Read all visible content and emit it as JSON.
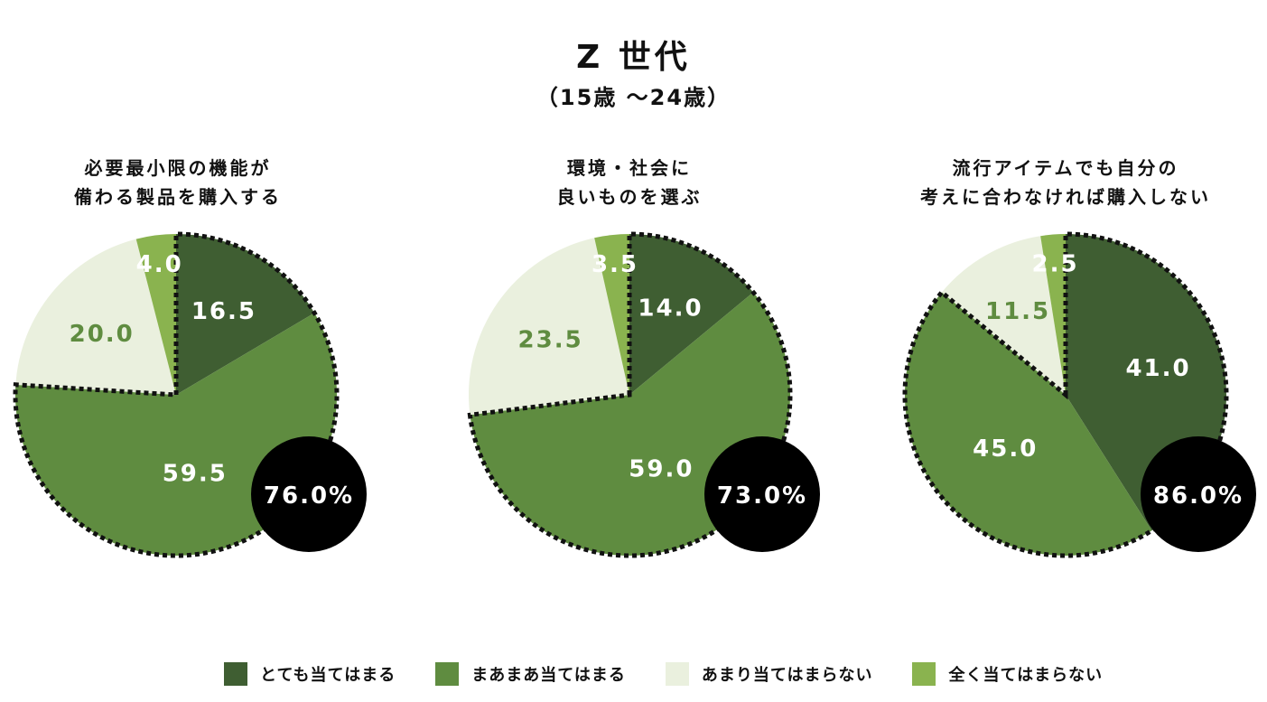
{
  "title": "Z 世代",
  "subtitle": "（15歳 ～24歳）",
  "colors": {
    "dark": "#3f5e32",
    "mid": "#5f8c40",
    "light": "#eaf0de",
    "bright": "#8ab34f",
    "badge": "#000000"
  },
  "legend": [
    {
      "label": "とても当てはまる",
      "color": "#3f5e32"
    },
    {
      "label": "まあまあ当てはまる",
      "color": "#5f8c40"
    },
    {
      "label": "あまり当てはまらない",
      "color": "#eaf0de"
    },
    {
      "label": "全く当てはまらない",
      "color": "#8ab34f"
    }
  ],
  "charts": [
    {
      "q1": "必要最小限の機能が",
      "q2": "備わる製品を購入する",
      "values": [
        16.5,
        59.5,
        20.0,
        4.0
      ],
      "labels": [
        "16.5",
        "59.5",
        "20.0",
        "4.0"
      ],
      "total": "76.0%"
    },
    {
      "q1": "環境・社会に",
      "q2": "良いものを選ぶ",
      "values": [
        14.0,
        59.0,
        23.5,
        3.5
      ],
      "labels": [
        "14.0",
        "59.0",
        "23.5",
        "3.5"
      ],
      "total": "73.0%"
    },
    {
      "q1": "流行アイテムでも自分の",
      "q2": "考えに合わなければ購入しない",
      "values": [
        41.0,
        45.0,
        11.5,
        2.5
      ],
      "labels": [
        "41.0",
        "45.0",
        "11.5",
        "2.5"
      ],
      "total": "86.0%"
    }
  ],
  "chart_data": [
    {
      "type": "pie",
      "title": "必要最小限の機能が備わる製品を購入する",
      "categories": [
        "とても当てはまる",
        "まあまあ当てはまる",
        "あまり当てはまらない",
        "全く当てはまらない"
      ],
      "values": [
        16.5,
        59.5,
        20.0,
        4.0
      ],
      "annotation": "76.0%"
    },
    {
      "type": "pie",
      "title": "環境・社会に良いものを選ぶ",
      "categories": [
        "とても当てはまる",
        "まあまあ当てはまる",
        "あまり当てはまらない",
        "全く当てはまらない"
      ],
      "values": [
        14.0,
        59.0,
        23.5,
        3.5
      ],
      "annotation": "73.0%"
    },
    {
      "type": "pie",
      "title": "流行アイテムでも自分の考えに合わなければ購入しない",
      "categories": [
        "とても当てはまる",
        "まあまあ当てはまる",
        "あまり当てはまらない",
        "全く当てはまらない"
      ],
      "values": [
        41.0,
        45.0,
        11.5,
        2.5
      ],
      "annotation": "86.0%"
    }
  ]
}
